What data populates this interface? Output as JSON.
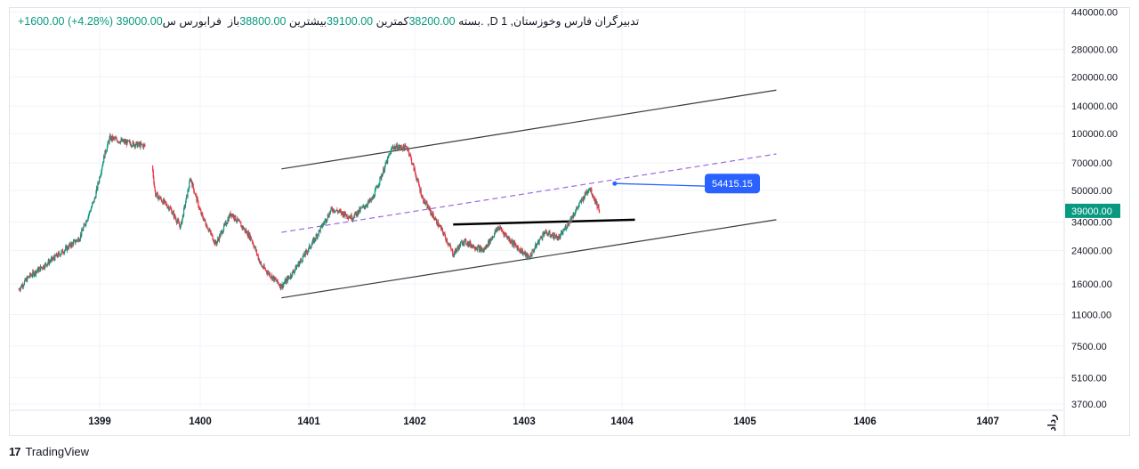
{
  "header": {
    "symbol": "تدبیرگران فارس وخوزستان, 1",
    "sym_suffix": "س. ,D",
    "exchange": "فرابورس",
    "open_label": "باز",
    "open": "38800.00",
    "high_label": "بیشترین",
    "high": "39100.00",
    "low_label": "کمترین",
    "low": "38200.00",
    "close_label": "بسته",
    "close": "39000.00",
    "change": "+1600.00 (+4.28%)"
  },
  "price_badge": {
    "value": "39000.00",
    "color": "#089981"
  },
  "target_label": {
    "value": "54415.15",
    "color": "#2962ff"
  },
  "x_axis": {
    "labels": [
      "1399",
      "1400",
      "1401",
      "1402",
      "1403",
      "1404",
      "1405",
      "1406",
      "1407"
    ],
    "corner": "رداد"
  },
  "branding": {
    "name": "TradingView",
    "logo": "17"
  },
  "colors": {
    "up": "#089981",
    "down": "#f23645",
    "channel": "#3b3b3b",
    "midline": "#9c6ade",
    "support": "#000000"
  },
  "chart_data": {
    "type": "candlestick",
    "scale": "log",
    "y_ticks": [
      440000,
      280000,
      200000,
      140000,
      100000,
      70000,
      50000,
      34000,
      24000,
      16000,
      11000,
      7500,
      5100,
      3700
    ],
    "y_tick_labels": [
      "440000.00",
      "280000.00",
      "200000.00",
      "140000.00",
      "100000.00",
      "70000.00",
      "50000.00",
      "34000.00",
      "24000.00",
      "16000.00",
      "11000.00",
      "7500.00",
      "5100.00",
      "3700.00"
    ],
    "price_path": [
      [
        1398.2,
        15000
      ],
      [
        1398.3,
        17500
      ],
      [
        1398.45,
        20000
      ],
      [
        1398.6,
        23000
      ],
      [
        1398.8,
        28000
      ],
      [
        1398.95,
        45000
      ],
      [
        1399.05,
        78000
      ],
      [
        1399.1,
        95000
      ],
      [
        1399.25,
        90000
      ],
      [
        1399.5,
        85000
      ],
      [
        1399.55,
        48000
      ],
      [
        1399.7,
        40000
      ],
      [
        1399.8,
        32000
      ],
      [
        1399.9,
        58000
      ],
      [
        1400.0,
        38000
      ],
      [
        1400.15,
        26000
      ],
      [
        1400.3,
        38000
      ],
      [
        1400.5,
        28000
      ],
      [
        1400.6,
        20000
      ],
      [
        1400.8,
        15500
      ],
      [
        1400.9,
        18000
      ],
      [
        1401.1,
        26000
      ],
      [
        1401.3,
        40000
      ],
      [
        1401.5,
        36000
      ],
      [
        1401.7,
        45000
      ],
      [
        1401.9,
        85000
      ],
      [
        1402.05,
        84000
      ],
      [
        1402.2,
        45000
      ],
      [
        1402.4,
        30000
      ],
      [
        1402.5,
        23000
      ],
      [
        1402.6,
        27000
      ],
      [
        1402.8,
        24000
      ],
      [
        1402.95,
        32000
      ],
      [
        1403.1,
        26000
      ],
      [
        1403.25,
        22000
      ],
      [
        1403.4,
        30000
      ],
      [
        1403.55,
        28000
      ],
      [
        1403.7,
        38000
      ],
      [
        1403.85,
        52000
      ],
      [
        1403.95,
        39000
      ]
    ],
    "channel_upper": [
      [
        1400.8,
        65000
      ],
      [
        1405.7,
        170000
      ]
    ],
    "channel_lower": [
      [
        1400.8,
        13500
      ],
      [
        1405.7,
        35000
      ]
    ],
    "midline": [
      [
        1400.8,
        30000
      ],
      [
        1405.7,
        78000
      ]
    ],
    "support_line": [
      [
        1402.5,
        33000
      ],
      [
        1404.3,
        35000
      ]
    ],
    "target": {
      "x": 1404.1,
      "y": 54415.15
    },
    "last_price": 39000
  }
}
